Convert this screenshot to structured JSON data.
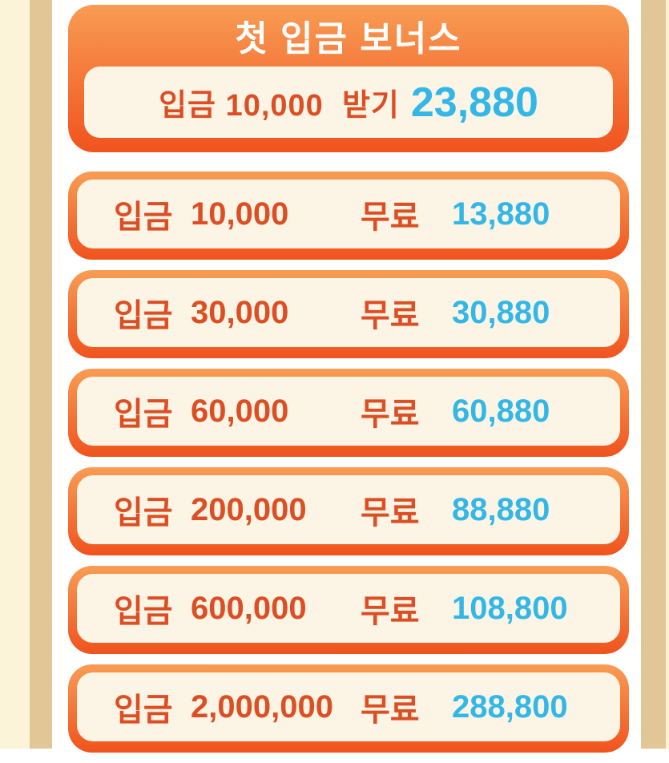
{
  "colors": {
    "frame_cream": "#FCF4D8",
    "frame_tan": "#E1C795",
    "card_orange_top": "#F89C54",
    "card_orange_bottom": "#F0531E",
    "inner_cream": "#FCF5E5",
    "text_red": "#DC4F24",
    "text_cyan": "#33B7E7",
    "title_white": "#FFFFFF"
  },
  "header": {
    "title": "첫 입금 보너스"
  },
  "featured": {
    "deposit_label": "입금",
    "amount": "10,000",
    "action_label": "받기",
    "bonus": "23,880"
  },
  "tiers": [
    {
      "deposit_label": "입금",
      "amount": "10,000",
      "free_label": "무료",
      "bonus": "13,880"
    },
    {
      "deposit_label": "입금",
      "amount": "30,000",
      "free_label": "무료",
      "bonus": "30,880"
    },
    {
      "deposit_label": "입금",
      "amount": "60,000",
      "free_label": "무료",
      "bonus": "60,880"
    },
    {
      "deposit_label": "입금",
      "amount": "200,000",
      "free_label": "무료",
      "bonus": "88,880"
    },
    {
      "deposit_label": "입금",
      "amount": "600,000",
      "free_label": "무료",
      "bonus": "108,800"
    },
    {
      "deposit_label": "입금",
      "amount": "2,000,000",
      "free_label": "무료",
      "bonus": "288,800"
    }
  ]
}
